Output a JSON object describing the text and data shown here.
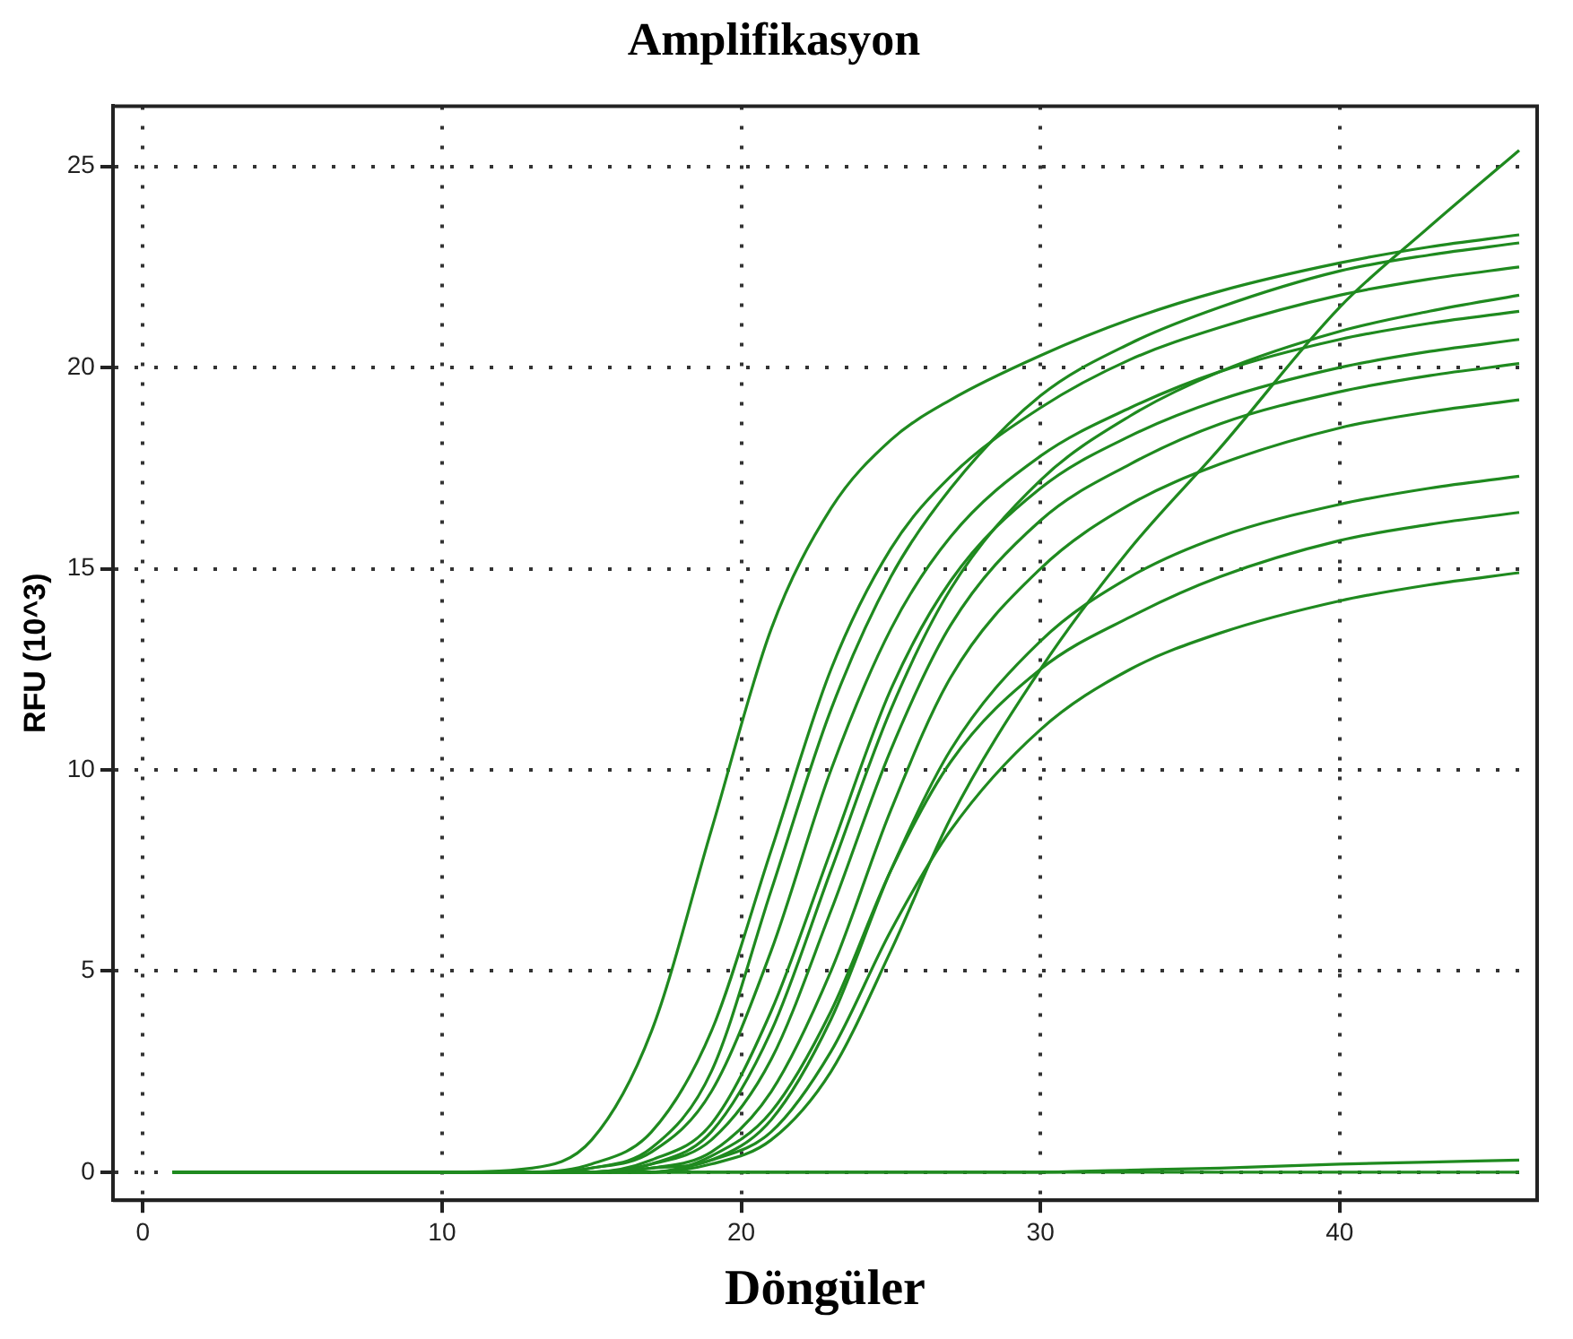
{
  "chart_data": {
    "type": "line",
    "title": "Amplifikasyon",
    "xlabel": "Döngüler",
    "ylabel": "RFU (10^3)",
    "x": [
      1,
      10,
      13,
      15,
      17,
      19,
      21,
      23,
      25,
      27,
      30,
      33,
      36,
      40,
      43,
      46
    ],
    "series": [
      {
        "color": "#1f8a1f",
        "values": [
          0,
          0,
          0.1,
          0.8,
          3.5,
          8.5,
          13.5,
          16.5,
          18.2,
          19.2,
          20.3,
          21.2,
          21.9,
          22.6,
          23.0,
          23.3
        ]
      },
      {
        "color": "#1f8a1f",
        "values": [
          0,
          0,
          0,
          0.2,
          1,
          3.5,
          8,
          12.5,
          15.5,
          17.3,
          19,
          20.2,
          21,
          21.8,
          22.2,
          22.5
        ]
      },
      {
        "color": "#1f8a1f",
        "values": [
          0,
          0,
          0,
          0.1,
          0.6,
          2.5,
          7,
          11.5,
          14.8,
          17,
          19.3,
          20.6,
          21.5,
          22.4,
          22.8,
          23.1
        ]
      },
      {
        "color": "#1f8a1f",
        "values": [
          0,
          0,
          0,
          0.1,
          0.5,
          2,
          5.5,
          10,
          13.5,
          15.8,
          17.8,
          19,
          19.9,
          20.7,
          21.1,
          21.4
        ]
      },
      {
        "color": "#1f8a1f",
        "values": [
          0,
          0,
          0,
          0,
          0.2,
          1,
          3.5,
          7.5,
          11.5,
          14.5,
          17.2,
          18.8,
          19.9,
          20.9,
          21.4,
          21.8
        ]
      },
      {
        "color": "#1f8a1f",
        "values": [
          0,
          0,
          0,
          0,
          0.3,
          1.2,
          4,
          8,
          12,
          14.7,
          17,
          18.3,
          19.2,
          20,
          20.4,
          20.7
        ]
      },
      {
        "color": "#1f8a1f",
        "values": [
          0,
          0,
          0,
          0,
          0.2,
          0.8,
          2.8,
          6.5,
          10.5,
          13.6,
          16.2,
          17.6,
          18.6,
          19.4,
          19.8,
          20.1
        ]
      },
      {
        "color": "#1f8a1f",
        "values": [
          0,
          0,
          0,
          0,
          0.1,
          0.5,
          2,
          5,
          9,
          12.3,
          15,
          16.6,
          17.6,
          18.5,
          18.9,
          19.2
        ]
      },
      {
        "color": "#1f8a1f",
        "values": [
          0,
          0,
          0,
          0,
          0.1,
          0.3,
          1.3,
          3.8,
          7.5,
          10.5,
          13.2,
          14.8,
          15.8,
          16.6,
          17,
          17.3
        ]
      },
      {
        "color": "#1f8a1f",
        "values": [
          0,
          0,
          0,
          0,
          0,
          0.4,
          1.5,
          4,
          7.5,
          10.2,
          12.5,
          13.8,
          14.8,
          15.7,
          16.1,
          16.4
        ]
      },
      {
        "color": "#1f8a1f",
        "values": [
          0,
          0,
          0,
          0,
          0,
          0.3,
          1,
          3,
          6,
          8.5,
          11,
          12.5,
          13.4,
          14.2,
          14.6,
          14.9
        ]
      },
      {
        "color": "#1f8a1f",
        "values": [
          0,
          0,
          0,
          0,
          0,
          0.2,
          0.8,
          2.5,
          5.5,
          8.8,
          12.5,
          15.5,
          18,
          21.5,
          23.5,
          25.4
        ]
      },
      {
        "color": "#1f8a1f",
        "values": [
          0,
          0,
          0,
          0,
          0,
          0,
          0,
          0,
          0,
          0,
          0,
          0.05,
          0.1,
          0.2,
          0.25,
          0.3
        ]
      },
      {
        "color": "#1f8a1f",
        "values": [
          0,
          0,
          0,
          0,
          0,
          0,
          0,
          0,
          0,
          0,
          0,
          0,
          0,
          0,
          0,
          0
        ]
      }
    ],
    "xlim": [
      -1,
      46.6
    ],
    "ylim": [
      -0.7,
      26.5
    ],
    "xticks": [
      0,
      10,
      20,
      30,
      40
    ],
    "yticks": [
      0,
      5,
      10,
      15,
      20,
      25
    ],
    "grid": true,
    "legend": false,
    "marker": "none",
    "line_style": "solid"
  }
}
